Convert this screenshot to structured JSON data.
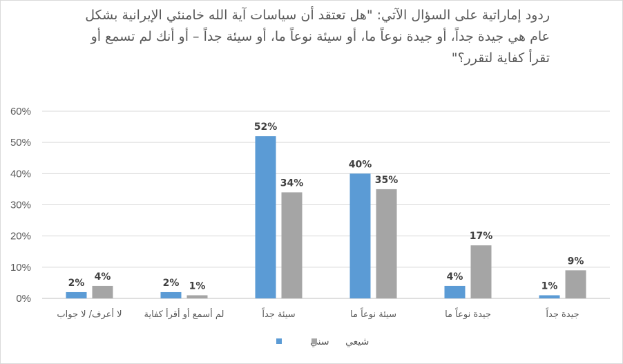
{
  "chart_data": {
    "type": "bar",
    "title": "ردود إماراتية على السؤال الآتي: \"هل تعتقد أن سياسات آية الله خامنئي الإيرانية بشكل عام هي جيدة جداً، أو جيدة نوعاً ما، أو سيئة نوعاً ما، أو سيئة جداً – أو أنك لم تسمع أو تقرأ كفاية لتقرر؟\"",
    "categories": [
      "لا أعرف/ لا جواب",
      "لم أسمع أو أقرأ كفاية",
      "سيئة جداً",
      "سيئة  نوعاً ما",
      "جيدة نوعاً ما",
      "جيدة جداً"
    ],
    "series": [
      {
        "name": "سني",
        "color": "#5b9bd5",
        "values": [
          2,
          2,
          52,
          40,
          4,
          1
        ]
      },
      {
        "name": "شيعي",
        "color": "#a5a5a5",
        "values": [
          4,
          1,
          34,
          35,
          17,
          9
        ]
      }
    ],
    "yticks": [
      "0%",
      "10%",
      "20%",
      "30%",
      "40%",
      "50%",
      "60%"
    ],
    "ylim": [
      0,
      60
    ],
    "value_suffix": "%",
    "grid": true,
    "legend_position": "bottom"
  }
}
